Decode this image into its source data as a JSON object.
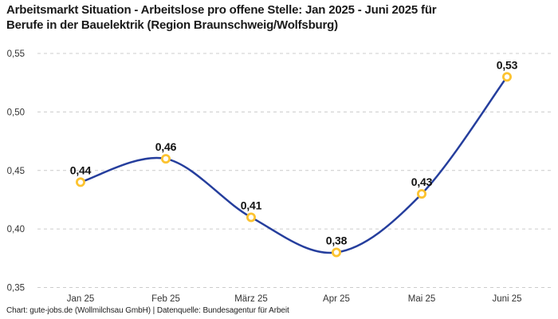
{
  "header": {
    "title_lines": [
      "Arbeitsmarkt Situation - Arbeitslose pro offene Stelle: Jan 2025 - Juni 2025 für",
      "Berufe in der Bauelektrik (Region Braunschweig/Wolfsburg)"
    ]
  },
  "footer": {
    "text": "Chart: gute-jobs.de (Wollmilchsau GmbH) | Datenquelle: Bundesagentur für Arbeit"
  },
  "chart_data": {
    "type": "line",
    "title": "Arbeitsmarkt Situation - Arbeitslose pro offene Stelle: Jan 2025 - Juni 2025 für Berufe in der Bauelektrik (Region Braunschweig/Wolfsburg)",
    "categories": [
      "Jan 25",
      "Feb 25",
      "März 25",
      "Apr 25",
      "Mai 25",
      "Juni 25"
    ],
    "values": [
      0.44,
      0.46,
      0.41,
      0.38,
      0.43,
      0.53
    ],
    "point_labels": [
      "0,44",
      "0,46",
      "0,41",
      "0,38",
      "0,43",
      "0,53"
    ],
    "xlabel": "",
    "ylabel": "",
    "ylim": [
      0.35,
      0.55
    ],
    "yticks": {
      "values": [
        0.55,
        0.5,
        0.45,
        0.4,
        0.35
      ],
      "labels": [
        "0,55",
        "0,50",
        "0,45",
        "0,40",
        "0,35"
      ]
    },
    "grid": "horizontal-dashed",
    "legend": "none",
    "colors": {
      "line": "#253e9d",
      "marker_ring": "#fcc330",
      "marker_fill": "#ffffff",
      "gridline": "#cccccc",
      "tick_text": "#333333",
      "data_label": "#111111",
      "title_text": "#1a1a1a"
    }
  }
}
